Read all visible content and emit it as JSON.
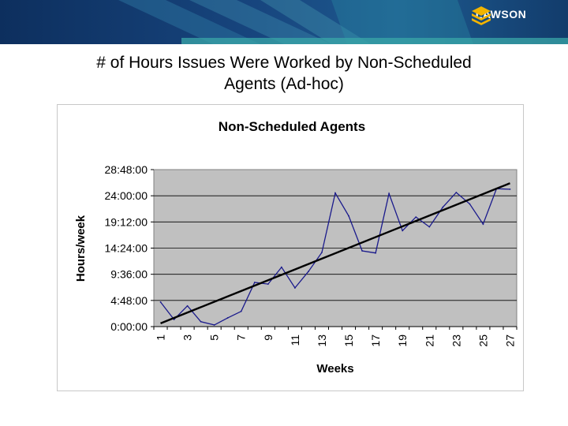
{
  "slide": {
    "title_line1": "# of Hours Issues Were Worked by Non-Scheduled",
    "title_line2": "Agents (Ad-hoc)"
  },
  "logo": {
    "text": "LAWSON",
    "icon": "stacked-chevrons-icon"
  },
  "colors": {
    "banner": "#17457e",
    "accent": "#2c8fa6",
    "logo_icon": "#f2b400",
    "plot_bg": "#c0c0c0",
    "series": "#1a1a8c",
    "trend": "#000000"
  },
  "chart_data": {
    "type": "line",
    "title": "Non-Scheduled Agents",
    "xlabel": "Weeks",
    "ylabel": "Hours/week",
    "x": [
      1,
      2,
      3,
      4,
      5,
      6,
      7,
      8,
      9,
      10,
      11,
      12,
      13,
      14,
      15,
      16,
      17,
      18,
      19,
      20,
      21,
      22,
      23,
      24,
      25,
      26,
      27
    ],
    "x_tick_labels": [
      "1",
      "3",
      "5",
      "7",
      "9",
      "11",
      "13",
      "15",
      "17",
      "19",
      "21",
      "23",
      "25",
      "27"
    ],
    "y_tick_labels": [
      "0:00:00",
      "4:48:00",
      "9:36:00",
      "14:24:00",
      "19:12:00",
      "24:00:00",
      "28:48:00"
    ],
    "ylim_hours": [
      0,
      28.8
    ],
    "grid": true,
    "series": [
      {
        "values_hours": [
          4.5,
          1.3,
          3.8,
          0.9,
          0.3,
          1.6,
          2.8,
          8.1,
          7.8,
          10.9,
          7.1,
          10.1,
          13.6,
          24.5,
          20.3,
          13.9,
          13.5,
          24.4,
          17.6,
          20.1,
          18.3,
          21.9,
          24.6,
          22.5,
          18.8,
          25.3,
          25.2
        ],
        "color": "#1a1a8c"
      }
    ],
    "trendline": {
      "start_hours": 0.6,
      "end_hours": 26.3,
      "color": "#000000"
    }
  }
}
